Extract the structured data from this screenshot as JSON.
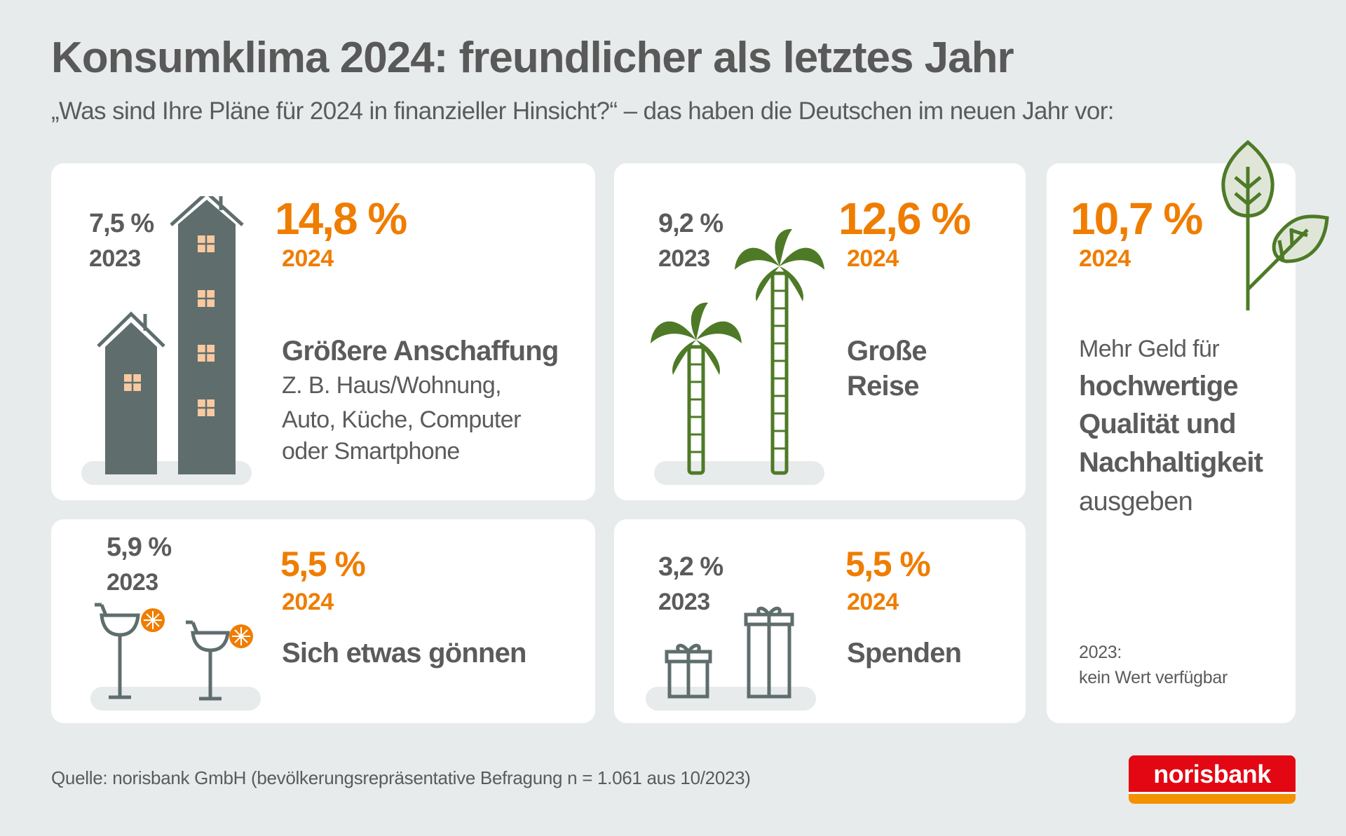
{
  "header": {
    "title": "Konsumklima 2024: freundlicher als letztes Jahr",
    "subtitle": "„Was sind Ihre Pläne für 2024 in finanzieller Hinsicht?“ – das haben die Deutschen im neuen Jahr vor:"
  },
  "cards": [
    {
      "value_2023": "7,5 %",
      "year_2023": "2023",
      "value_2024": "14,8 %",
      "year_2024": "2024",
      "label": "Größere Anschaffung",
      "desc": [
        "Z. B. Haus/Wohnung,",
        "Auto, Küche, Computer",
        "oder Smartphone"
      ],
      "icon": "houses-icon"
    },
    {
      "value_2023": "9,2 %",
      "year_2023": "2023",
      "value_2024": "12,6 %",
      "year_2024": "2024",
      "label": [
        "Große",
        "Reise"
      ],
      "icon": "palm-trees-icon"
    },
    {
      "value_2024": "10,7 %",
      "year_2024": "2024",
      "label_pre": "Mehr Geld für",
      "label_bold": [
        "hochwertige",
        "Qualität und",
        "Nachhaltigkeit"
      ],
      "label_post": "ausgeben",
      "note_year": "2023:",
      "note": "kein Wert verfügbar",
      "icon": "leaves-icon"
    },
    {
      "value_2023": "5,9 %",
      "year_2023": "2023",
      "value_2024": "5,5 %",
      "year_2024": "2024",
      "label": "Sich etwas gönnen",
      "icon": "cocktail-glasses-icon"
    },
    {
      "value_2023": "3,2 %",
      "year_2023": "2023",
      "value_2024": "5,5 %",
      "year_2024": "2024",
      "label": "Spenden",
      "icon": "gift-boxes-icon"
    }
  ],
  "footer": {
    "source": "Quelle: norisbank GmbH (bevölkerungsrepräsentative Befragung n = 1.061 aus 10/2023)",
    "logo_text": "norisbank"
  },
  "colors": {
    "background": "#e8ebec",
    "text": "#5b5b5b",
    "accent": "#ef7d00",
    "house": "#5f6d6d",
    "window": "#f8c9a0",
    "green": "#4e7a27",
    "logo_red": "#e30613",
    "logo_orange": "#f39200"
  }
}
